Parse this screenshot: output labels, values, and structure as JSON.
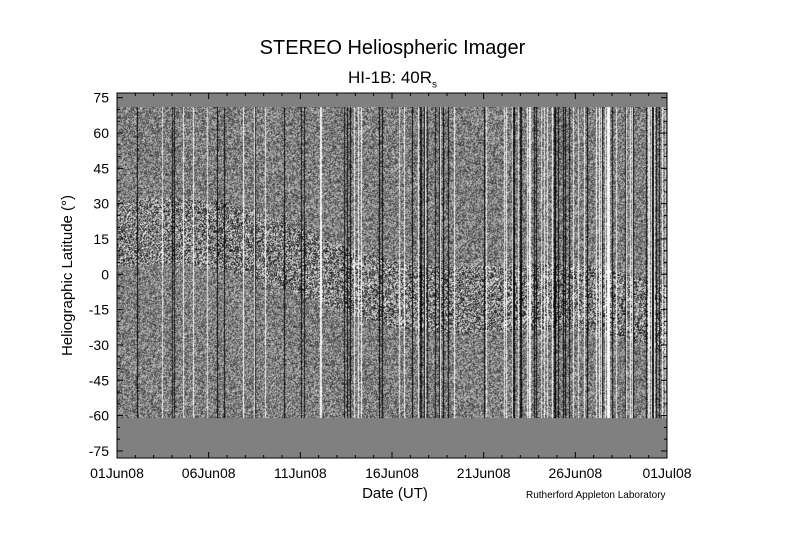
{
  "title_main": "STEREO Heliospheric Imager",
  "subtitle_prefix": "HI-1B: 40R",
  "subtitle_sub": "s",
  "credit": "Rutherford Appleton Laboratory",
  "chart_data": {
    "type": "heatmap",
    "title": "STEREO Heliospheric Imager",
    "subtitle": "HI-1B: 40Rs",
    "xlabel": "Date (UT)",
    "ylabel": "Heliographic Latitude (°)",
    "xlim": [
      "01Jun08",
      "01Jul08"
    ],
    "ylim": [
      -78,
      77
    ],
    "x_ticks": [
      "01Jun08",
      "06Jun08",
      "11Jun08",
      "16Jun08",
      "21Jun08",
      "26Jun08",
      "01Jul08"
    ],
    "y_ticks": [
      75,
      60,
      45,
      30,
      15,
      0,
      -15,
      -30,
      -45,
      -60,
      -75
    ],
    "data_coverage_latitude": [
      -61,
      71
    ],
    "no_data_color": "#808080",
    "colormap": "grayscale difference image",
    "grid": false
  }
}
